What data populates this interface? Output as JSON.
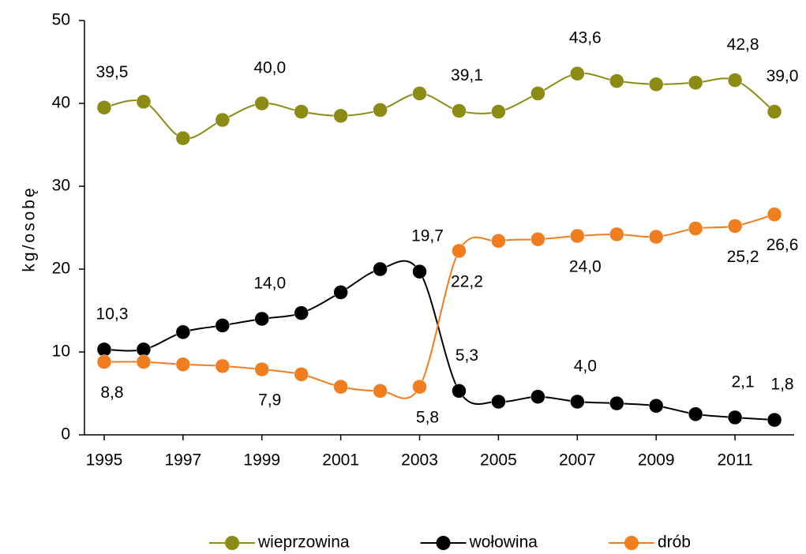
{
  "chart_data": {
    "type": "line",
    "y_label": "kg/osobę",
    "x": [
      1995,
      1996,
      1997,
      1998,
      1999,
      2000,
      2001,
      2002,
      2003,
      2004,
      2005,
      2006,
      2007,
      2008,
      2009,
      2010,
      2011,
      2012
    ],
    "xlim": [
      1994.5,
      2012.5
    ],
    "xticks": [
      1995,
      1997,
      1999,
      2001,
      2003,
      2005,
      2007,
      2009,
      2011
    ],
    "ylim": [
      0,
      50
    ],
    "yticks": [
      0,
      10,
      20,
      30,
      40,
      50
    ],
    "grid": false,
    "legend": "bottom",
    "series": [
      {
        "name": "wieprzowina",
        "color": "#8c8c14",
        "label_side": "above",
        "values": [
          39.5,
          40.2,
          35.8,
          38.0,
          40.0,
          39.0,
          38.5,
          39.2,
          41.2,
          39.1,
          39.0,
          41.2,
          43.6,
          42.7,
          42.3,
          42.5,
          42.8,
          39.0
        ],
        "value_labels": [
          "39,5",
          null,
          null,
          null,
          "40,0",
          null,
          null,
          null,
          null,
          "39,1",
          null,
          null,
          "43,6",
          null,
          null,
          null,
          "42,8",
          "39,0"
        ]
      },
      {
        "name": "wołowina",
        "color": "#000000",
        "label_side": "above",
        "values": [
          10.3,
          10.3,
          12.4,
          13.2,
          14.0,
          14.7,
          17.2,
          20.0,
          19.7,
          5.3,
          4.0,
          4.6,
          4.0,
          3.8,
          3.5,
          2.5,
          2.1,
          1.8
        ],
        "value_labels": [
          "10,3",
          null,
          null,
          null,
          "14,0",
          null,
          null,
          null,
          "19,7",
          "5,3",
          null,
          null,
          "4,0",
          null,
          null,
          null,
          "2,1",
          "1,8"
        ]
      },
      {
        "name": "drób",
        "color": "#f07d1e",
        "label_side": "below",
        "values": [
          8.8,
          8.8,
          8.5,
          8.3,
          7.9,
          7.3,
          5.8,
          5.3,
          5.8,
          22.2,
          23.4,
          23.6,
          24.0,
          24.2,
          23.9,
          24.9,
          25.2,
          26.6
        ],
        "value_labels": [
          "8,8",
          null,
          null,
          null,
          "7,9",
          null,
          null,
          null,
          "5,8",
          "22,2",
          null,
          null,
          "24,0",
          null,
          null,
          null,
          "25,2",
          "26,6"
        ]
      }
    ]
  }
}
